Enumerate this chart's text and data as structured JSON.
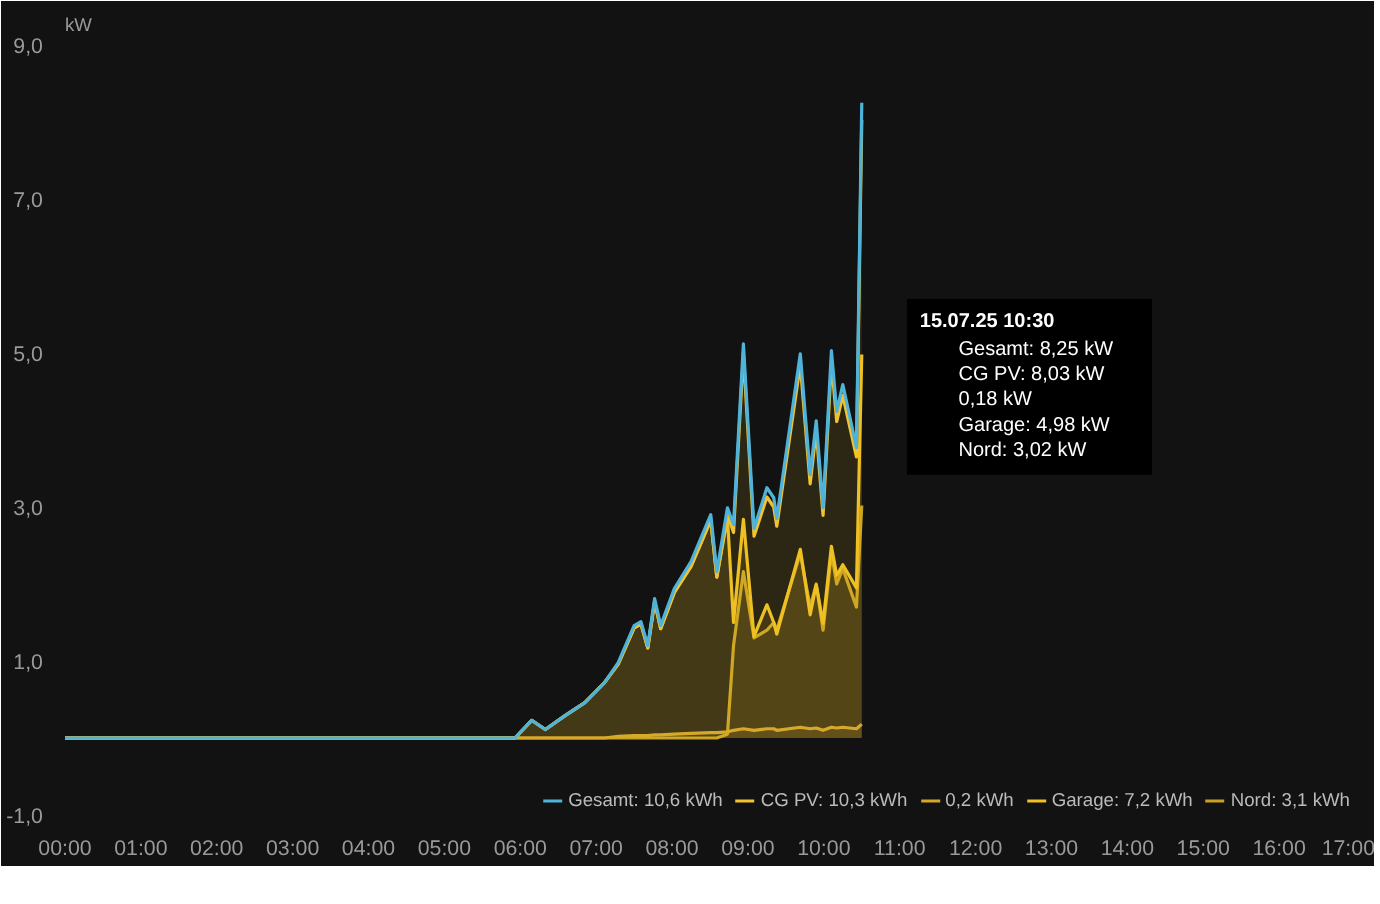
{
  "chart_data": {
    "type": "area",
    "ylabel": "kW",
    "x": [
      0,
      5.93,
      6.15,
      6.33,
      6.59,
      6.85,
      7.11,
      7.29,
      7.5,
      7.59,
      7.68,
      7.77,
      7.85,
      8.03,
      8.25,
      8.51,
      8.59,
      8.73,
      8.81,
      8.94,
      9.08,
      9.25,
      9.34,
      9.38,
      9.69,
      9.82,
      9.9,
      9.99,
      10.1,
      10.17,
      10.25,
      10.43,
      10.5
    ],
    "series": [
      {
        "name": "Gesamt: 10,6 kWh",
        "color": "#4fb3d9",
        "type": "line",
        "values": [
          0,
          0,
          0.23,
          0.11,
          0.29,
          0.46,
          0.72,
          0.98,
          1.46,
          1.51,
          1.2,
          1.81,
          1.46,
          1.94,
          2.29,
          2.9,
          2.16,
          2.99,
          2.77,
          5.12,
          2.72,
          3.25,
          3.12,
          2.85,
          4.99,
          3.42,
          4.12,
          2.99,
          5.03,
          4.24,
          4.59,
          3.77,
          8.25
        ]
      },
      {
        "name": "CG PV: 10,3 kWh",
        "color": "#f2c230",
        "values": [
          0,
          0,
          0.23,
          0.11,
          0.29,
          0.46,
          0.72,
          0.96,
          1.43,
          1.48,
          1.17,
          1.77,
          1.42,
          1.89,
          2.23,
          2.83,
          2.09,
          2.91,
          2.67,
          5.0,
          2.62,
          3.13,
          3.0,
          2.75,
          4.85,
          3.3,
          3.99,
          2.89,
          4.89,
          4.11,
          4.45,
          3.65,
          8.03
        ]
      },
      {
        "name": "0,2 kWh",
        "color": "#d4a62a",
        "values": [
          0,
          0,
          0,
          0,
          0,
          0,
          0,
          0.02,
          0.03,
          0.03,
          0.03,
          0.04,
          0.04,
          0.05,
          0.06,
          0.07,
          0.07,
          0.08,
          0.1,
          0.12,
          0.1,
          0.12,
          0.12,
          0.1,
          0.14,
          0.12,
          0.13,
          0.1,
          0.14,
          0.13,
          0.14,
          0.12,
          0.18
        ]
      },
      {
        "name": "Garage: 7,2 kWh",
        "color": "#f0c020",
        "values": [
          0,
          0,
          0.23,
          0.11,
          0.29,
          0.46,
          0.72,
          0.96,
          1.43,
          1.48,
          1.17,
          1.77,
          1.42,
          1.89,
          2.23,
          2.83,
          2.09,
          2.86,
          1.5,
          2.84,
          1.32,
          1.73,
          1.5,
          1.35,
          2.45,
          1.6,
          1.99,
          1.49,
          2.49,
          2.11,
          2.25,
          1.95,
          4.98
        ]
      },
      {
        "name": "Nord: 3,1 kWh",
        "color": "#c8a020",
        "values": [
          0,
          0,
          0,
          0,
          0,
          0,
          0,
          0,
          0,
          0,
          0,
          0,
          0,
          0,
          0,
          0,
          0,
          0.05,
          1.2,
          2.16,
          1.3,
          1.4,
          1.5,
          1.4,
          2.4,
          1.7,
          2.0,
          1.4,
          2.4,
          2.0,
          2.2,
          1.7,
          3.02
        ]
      }
    ],
    "annotations": [
      "15.07.25 10:30",
      "Gesamt: 8,25 kW",
      "CG PV: 8,03 kW",
      "0,18 kW",
      "Garage: 4,98 kW",
      "Nord: 3,02 kW"
    ],
    "xlim": [
      0,
      17
    ],
    "xticks": [
      {
        "value": 0,
        "label": "00:00"
      },
      {
        "value": 1,
        "label": "01:00"
      },
      {
        "value": 2,
        "label": "02:00"
      },
      {
        "value": 3,
        "label": "03:00"
      },
      {
        "value": 4,
        "label": "04:00"
      },
      {
        "value": 5,
        "label": "05:00"
      },
      {
        "value": 6,
        "label": "06:00"
      },
      {
        "value": 7,
        "label": "07:00"
      },
      {
        "value": 8,
        "label": "08:00"
      },
      {
        "value": 9,
        "label": "09:00"
      },
      {
        "value": 10,
        "label": "10:00"
      },
      {
        "value": 11,
        "label": "11:00"
      },
      {
        "value": 12,
        "label": "12:00"
      },
      {
        "value": 13,
        "label": "13:00"
      },
      {
        "value": 14,
        "label": "14:00"
      },
      {
        "value": 15,
        "label": "15:00"
      },
      {
        "value": 16,
        "label": "16:00"
      },
      {
        "value": 17,
        "label": "17:00"
      }
    ],
    "ylim": [
      -1,
      9
    ],
    "yticks": [
      {
        "value": -1,
        "label": "-1,0"
      },
      {
        "value": 1,
        "label": "1,0"
      },
      {
        "value": 3,
        "label": "3,0"
      },
      {
        "value": 5,
        "label": "5,0"
      },
      {
        "value": 7,
        "label": "7,0"
      },
      {
        "value": 9,
        "label": "9,0"
      }
    ],
    "legend": "bottom right",
    "marker": "none",
    "line_style": "solid"
  }
}
